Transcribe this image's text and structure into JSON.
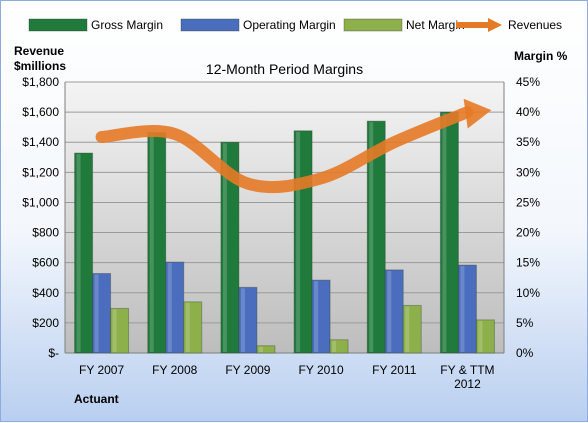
{
  "chart_data": {
    "type": "bar",
    "title": "12-Month Period Margins",
    "categories": [
      [
        "FY 2007"
      ],
      [
        "FY 2008"
      ],
      [
        "FY 2009"
      ],
      [
        "FY 2010"
      ],
      [
        "FY 2011"
      ],
      [
        "FY & TTM",
        "2012"
      ]
    ],
    "series": [
      {
        "name": "Gross Margin",
        "axis": "right",
        "color": "#1f7a3c",
        "values": [
          33.2,
          36.6,
          35.0,
          36.9,
          38.5,
          40.0
        ]
      },
      {
        "name": "Operating Margin",
        "axis": "right",
        "color": "#4a6ebd",
        "values": [
          13.2,
          15.1,
          10.9,
          12.1,
          13.8,
          14.6
        ]
      },
      {
        "name": "Net Margin",
        "axis": "right",
        "color": "#8db04a",
        "values": [
          7.4,
          8.5,
          1.2,
          2.2,
          7.9,
          5.5
        ]
      },
      {
        "name": "Revenues",
        "axis": "left",
        "type": "line",
        "color": "#e57a26",
        "values": [
          1435,
          1455,
          1125,
          1160,
          1400,
          1600
        ]
      }
    ],
    "ylabel_left": [
      "Revenue",
      "$millions"
    ],
    "ylabel_right": "Margin %",
    "ylim_left": [
      0,
      1800
    ],
    "ylim_right": [
      0,
      45
    ],
    "yticks_left": [
      "$-",
      "$200",
      "$400",
      "$600",
      "$800",
      "$1,000",
      "$1,200",
      "$1,400",
      "$1,600",
      "$1,800"
    ],
    "yticks_right": [
      "0%",
      "5%",
      "10%",
      "15%",
      "20%",
      "25%",
      "30%",
      "35%",
      "40%",
      "45%"
    ],
    "grid": true,
    "legend": "top",
    "footnote": "Actuant"
  }
}
